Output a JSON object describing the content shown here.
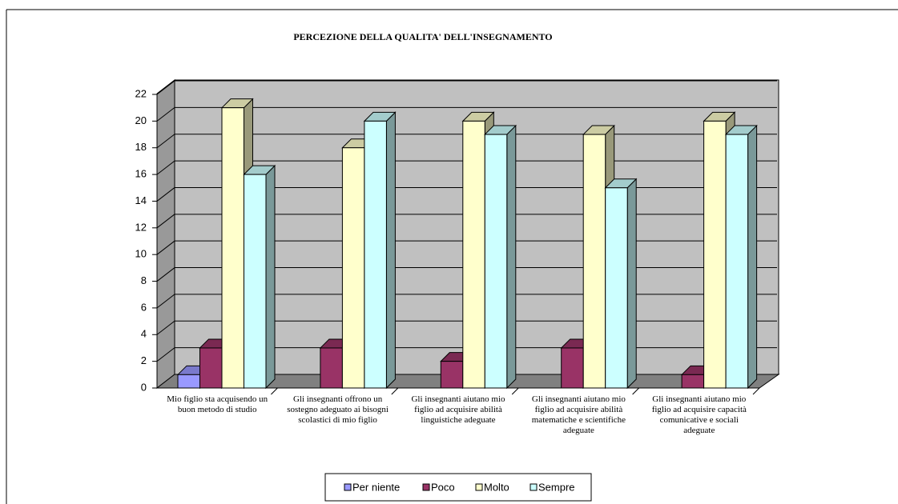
{
  "chart_data": {
    "type": "bar3d",
    "title": "PERCEZIONE DELLA QUALITA' DELL'INSEGNAMENTO",
    "categories": [
      "Mio figlio sta acquisendo un buon metodo di studio",
      "Gli insegnanti offrono un sostegno adeguato ai bisogni scolastici di mio figlio",
      "Gli insegnanti aiutano mio figlio ad acquisire abilità linguistiche adeguate",
      "Gli insegnanti aiutano mio figlio ad acquisire abilità matematiche e scientifiche adeguate",
      "Gli insegnanti aiutano mio figlio ad acquisire capacità comunicative e sociali adeguate"
    ],
    "series": [
      {
        "name": "Per niente",
        "color": "#9999ff",
        "values": [
          1,
          null,
          null,
          null,
          null
        ]
      },
      {
        "name": "Poco",
        "color": "#993366",
        "values": [
          3,
          3,
          2,
          3,
          1
        ]
      },
      {
        "name": "Molto",
        "color": "#ffffcc",
        "values": [
          21,
          18,
          20,
          19,
          20
        ]
      },
      {
        "name": "Sempre",
        "color": "#ccffff",
        "values": [
          16,
          20,
          19,
          15,
          19
        ]
      }
    ],
    "ylim": [
      0,
      22
    ],
    "yticks": [
      0,
      2,
      4,
      6,
      8,
      10,
      12,
      14,
      16,
      18,
      20,
      22
    ],
    "grid": true
  }
}
